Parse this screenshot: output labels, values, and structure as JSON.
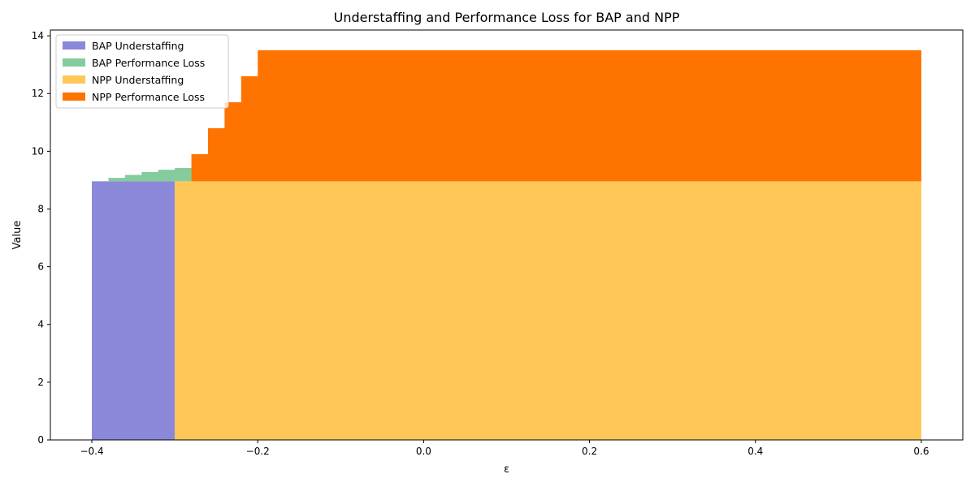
{
  "chart_data": {
    "type": "area",
    "title": "Understaffing and Performance Loss for BAP and NPP",
    "xlabel": "ε",
    "ylabel": "Value",
    "xlim": [
      -0.45,
      0.65
    ],
    "ylim": [
      0,
      14.2
    ],
    "x_ticks": [
      -0.4,
      -0.2,
      0.0,
      0.2,
      0.4,
      0.6
    ],
    "x_tick_labels": [
      "−0.4",
      "−0.2",
      "0.0",
      "0.2",
      "0.4",
      "0.6"
    ],
    "y_ticks": [
      0,
      2,
      4,
      6,
      8,
      10,
      12,
      14
    ],
    "y_tick_labels": [
      "0",
      "2",
      "4",
      "6",
      "8",
      "10",
      "12",
      "14"
    ],
    "grid": false,
    "legend_position": "top-left",
    "series": [
      {
        "name": "BAP Understaffing",
        "color": "#8b87d9",
        "x": [
          -0.4,
          -0.38,
          -0.36,
          -0.34,
          -0.32,
          -0.3
        ],
        "base": [
          0,
          0,
          0,
          0,
          0,
          0
        ],
        "top": [
          8.96,
          8.96,
          8.96,
          8.96,
          8.96,
          8.96
        ]
      },
      {
        "name": "BAP Performance Loss",
        "color": "#85cc9d",
        "x": [
          -0.4,
          -0.38,
          -0.36,
          -0.34,
          -0.32,
          -0.3,
          -0.28
        ],
        "base": [
          8.96,
          8.96,
          8.96,
          8.96,
          8.96,
          8.96,
          8.96
        ],
        "top": [
          8.96,
          9.08,
          9.18,
          9.28,
          9.36,
          9.42,
          9.42
        ]
      },
      {
        "name": "NPP Understaffing",
        "color": "#ffc658",
        "x": [
          -0.3,
          -0.2,
          0.0,
          0.2,
          0.4,
          0.6
        ],
        "base": [
          0,
          0,
          0,
          0,
          0,
          0
        ],
        "top": [
          8.96,
          8.96,
          8.96,
          8.96,
          8.96,
          8.96
        ]
      },
      {
        "name": "NPP Performance Loss",
        "color": "#ff7300",
        "x": [
          -0.28,
          -0.26,
          -0.24,
          -0.22,
          -0.2,
          0.0,
          0.2,
          0.4,
          0.6
        ],
        "base": [
          8.96,
          8.96,
          8.96,
          8.96,
          8.96,
          8.96,
          8.96,
          8.96,
          8.96
        ],
        "top": [
          9.9,
          10.8,
          11.7,
          12.6,
          13.5,
          13.5,
          13.5,
          13.5,
          13.5
        ]
      }
    ]
  }
}
